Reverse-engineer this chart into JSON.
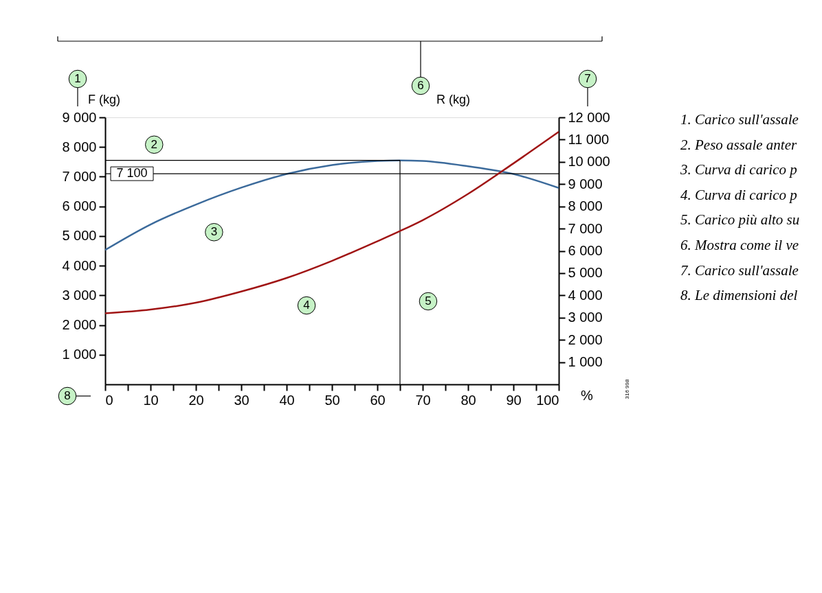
{
  "chart_data": {
    "type": "line",
    "xlabel": "%",
    "ylabel": "F (kg)",
    "y2label": "R (kg)",
    "x": [
      0,
      10,
      20,
      30,
      40,
      50,
      60,
      65,
      70,
      80,
      90,
      100
    ],
    "series": [
      {
        "color": "#3b6a9b",
        "values": [
          4530,
          5390,
          6060,
          6630,
          7090,
          7390,
          7530,
          7550,
          7530,
          7350,
          7090,
          6620
        ]
      },
      {
        "color": "#a01414",
        "axis": "y2",
        "values": [
          3190,
          3360,
          3670,
          4170,
          4780,
          5550,
          6430,
          6890,
          7380,
          8560,
          9930,
          11350
        ]
      }
    ],
    "xlim": [
      0,
      100
    ],
    "ylim": [
      0,
      9000
    ],
    "y2lim": [
      0,
      12000
    ],
    "xticks": [
      0,
      {
        "value": 5,
        "label": null
      },
      10,
      {
        "value": 15,
        "label": null
      },
      20,
      {
        "value": 25,
        "label": null
      },
      30,
      {
        "value": 35,
        "label": null
      },
      40,
      {
        "value": 45,
        "label": null
      },
      50,
      {
        "value": 55,
        "label": null
      },
      60,
      {
        "value": 65,
        "label": null
      },
      70,
      {
        "value": 75,
        "label": null
      },
      80,
      {
        "value": 85,
        "label": null
      },
      90,
      {
        "value": 95,
        "label": null
      },
      100
    ],
    "yticks": [
      {
        "value": 1000,
        "label": "1 000"
      },
      {
        "value": 2000,
        "label": "2 000"
      },
      {
        "value": 3000,
        "label": "3 000"
      },
      {
        "value": 4000,
        "label": "4 000"
      },
      {
        "value": 5000,
        "label": "5 000"
      },
      {
        "value": 6000,
        "label": "6 000"
      },
      {
        "value": 7000,
        "label": "7 000"
      },
      {
        "value": 8000,
        "label": "8 000"
      },
      {
        "value": 9000,
        "label": "9 000"
      }
    ],
    "y2ticks": [
      {
        "value": 1000,
        "label": "1 000"
      },
      {
        "value": 2000,
        "label": "2 000"
      },
      {
        "value": 3000,
        "label": "3 000"
      },
      {
        "value": 4000,
        "label": "4 000"
      },
      {
        "value": 5000,
        "label": "5 000"
      },
      {
        "value": 6000,
        "label": "6 000"
      },
      {
        "value": 7000,
        "label": "7 000"
      },
      {
        "value": 8000,
        "label": "8 000"
      },
      {
        "value": 9000,
        "label": "9 000"
      },
      {
        "value": 10000,
        "label": "10 000"
      },
      {
        "value": 11000,
        "label": "11 000"
      },
      {
        "value": 12000,
        "label": "12 000"
      }
    ],
    "ref_lines": [
      {
        "axis": "y",
        "value": 7550
      },
      {
        "axis": "y",
        "value": 7100,
        "label": "7 100"
      },
      {
        "axis": "x",
        "value": 65
      }
    ],
    "grid": false,
    "marker": "none",
    "line_style": "solid",
    "annotations": [
      {
        "text": "2",
        "x": 10.8,
        "y": 8080
      },
      {
        "text": "3",
        "x": 24,
        "y": 5130
      },
      {
        "text": "4",
        "x": 44.4,
        "y": 2660
      },
      {
        "text": "5",
        "x": 71.2,
        "y": 2800
      },
      "1",
      "6",
      "7",
      "8",
      "316 998",
      "1. Carico sull'assale",
      "2. Peso assale anter",
      "3. Curva di carico p",
      "4. Curva di carico p",
      "5. Carico più alto su",
      "6. Mostra come il ve",
      "7. Carico sull'assale",
      "8. Le dimensioni del"
    ]
  }
}
